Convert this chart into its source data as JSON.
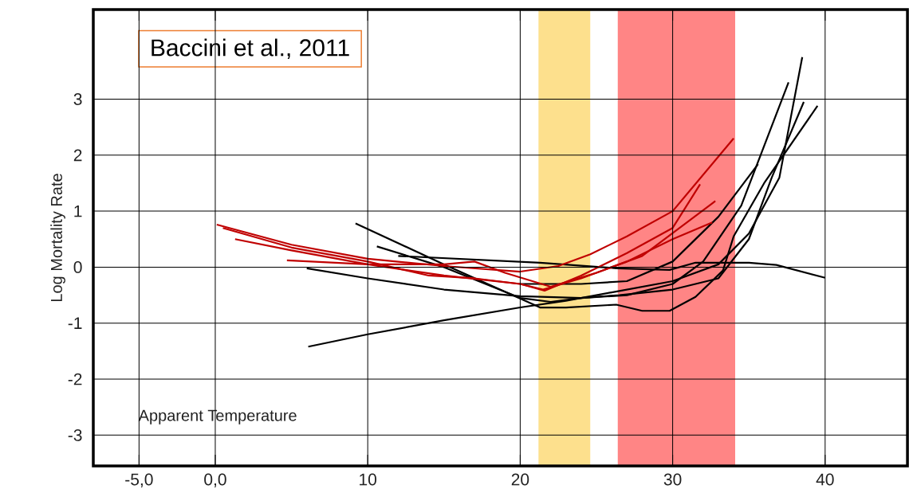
{
  "chart_data": {
    "type": "line",
    "xlabel": "Apparent Temperature",
    "ylabel": "Log Mortality Rate",
    "annotations": [
      "Baccini et al., 2011"
    ],
    "xlim": [
      -8,
      45.4
    ],
    "ylim": [
      -3.55,
      4.6
    ],
    "xticks": [
      {
        "value": -5,
        "label": "-5,0"
      },
      {
        "value": 0,
        "label": "0,0"
      },
      10,
      20,
      30,
      40
    ],
    "yticks": [
      -3,
      -2,
      -1,
      0,
      1,
      2,
      3
    ],
    "grid": true,
    "marker": "none",
    "line_style": "solid",
    "bands": [
      {
        "axis": "x",
        "from": 21.2,
        "to": 24.6,
        "color": "#fde08d"
      },
      {
        "axis": "x",
        "from": 26.4,
        "to": 34.1,
        "color": "#ff8585"
      }
    ],
    "series": [
      {
        "color": "#000000",
        "x": [
          6.1,
          10,
          15,
          20,
          23,
          26,
          30,
          33,
          35,
          37,
          38.5
        ],
        "values": [
          -1.42,
          -1.2,
          -0.95,
          -0.72,
          -0.6,
          -0.45,
          -0.25,
          0.05,
          0.6,
          1.6,
          3.75
        ]
      },
      {
        "color": "#000000",
        "x": [
          6,
          10,
          15,
          20,
          24,
          26.5,
          30,
          33,
          35,
          36.5,
          38.6
        ],
        "values": [
          -0.02,
          -0.2,
          -0.4,
          -0.52,
          -0.55,
          -0.5,
          -0.4,
          -0.2,
          0.5,
          1.6,
          2.95
        ]
      },
      {
        "color": "#000000",
        "x": [
          9.2,
          15,
          21.3,
          23,
          26.3,
          28,
          29.8,
          31.5,
          33.3,
          34,
          36,
          39.5
        ],
        "values": [
          0.78,
          0.05,
          -0.72,
          -0.72,
          -0.67,
          -0.78,
          -0.78,
          -0.53,
          -0.06,
          0.55,
          1.5,
          2.88
        ]
      },
      {
        "color": "#000000",
        "x": [
          10.6,
          15,
          20,
          22,
          24,
          27,
          30,
          32,
          34.5,
          37.6
        ],
        "values": [
          0.37,
          0.0,
          -0.55,
          -0.62,
          -0.55,
          -0.5,
          -0.3,
          0.1,
          1.1,
          3.3
        ]
      },
      {
        "color": "#000000",
        "x": [
          12,
          21.3,
          26.3,
          29.8,
          31.5,
          35,
          36.8,
          40
        ],
        "values": [
          0.2,
          0.08,
          -0.02,
          -0.05,
          0.08,
          0.08,
          0.04,
          -0.19
        ]
      },
      {
        "color": "#000000",
        "x": [
          20,
          24,
          27,
          30,
          33,
          35.6
        ],
        "values": [
          -0.3,
          -0.3,
          -0.25,
          0.1,
          0.9,
          1.84
        ]
      },
      {
        "color": "#c00000",
        "x": [
          0.1,
          5,
          10,
          15,
          20,
          22.5,
          24.6,
          27,
          30,
          34
        ],
        "values": [
          0.76,
          0.4,
          0.15,
          0.02,
          -0.08,
          0.02,
          0.23,
          0.55,
          1.0,
          2.3
        ]
      },
      {
        "color": "#c00000",
        "x": [
          1.3,
          5,
          10,
          15,
          20,
          21.6,
          24,
          27,
          30,
          31.8
        ],
        "values": [
          0.5,
          0.3,
          0.05,
          -0.15,
          -0.3,
          -0.42,
          -0.15,
          0.25,
          0.7,
          1.48
        ]
      },
      {
        "color": "#c00000",
        "x": [
          4.7,
          10,
          15,
          17,
          19,
          22,
          25,
          28,
          32.8
        ],
        "values": [
          0.12,
          0.05,
          0.05,
          0.1,
          -0.1,
          -0.35,
          -0.1,
          0.2,
          1.18
        ]
      },
      {
        "color": "#c00000",
        "x": [
          0.5,
          5,
          10,
          14,
          17,
          20,
          21.5,
          24,
          27,
          30,
          32.6
        ],
        "values": [
          0.7,
          0.35,
          0.1,
          -0.15,
          -0.2,
          -0.3,
          -0.4,
          -0.2,
          0.1,
          0.5,
          0.8
        ]
      }
    ]
  }
}
